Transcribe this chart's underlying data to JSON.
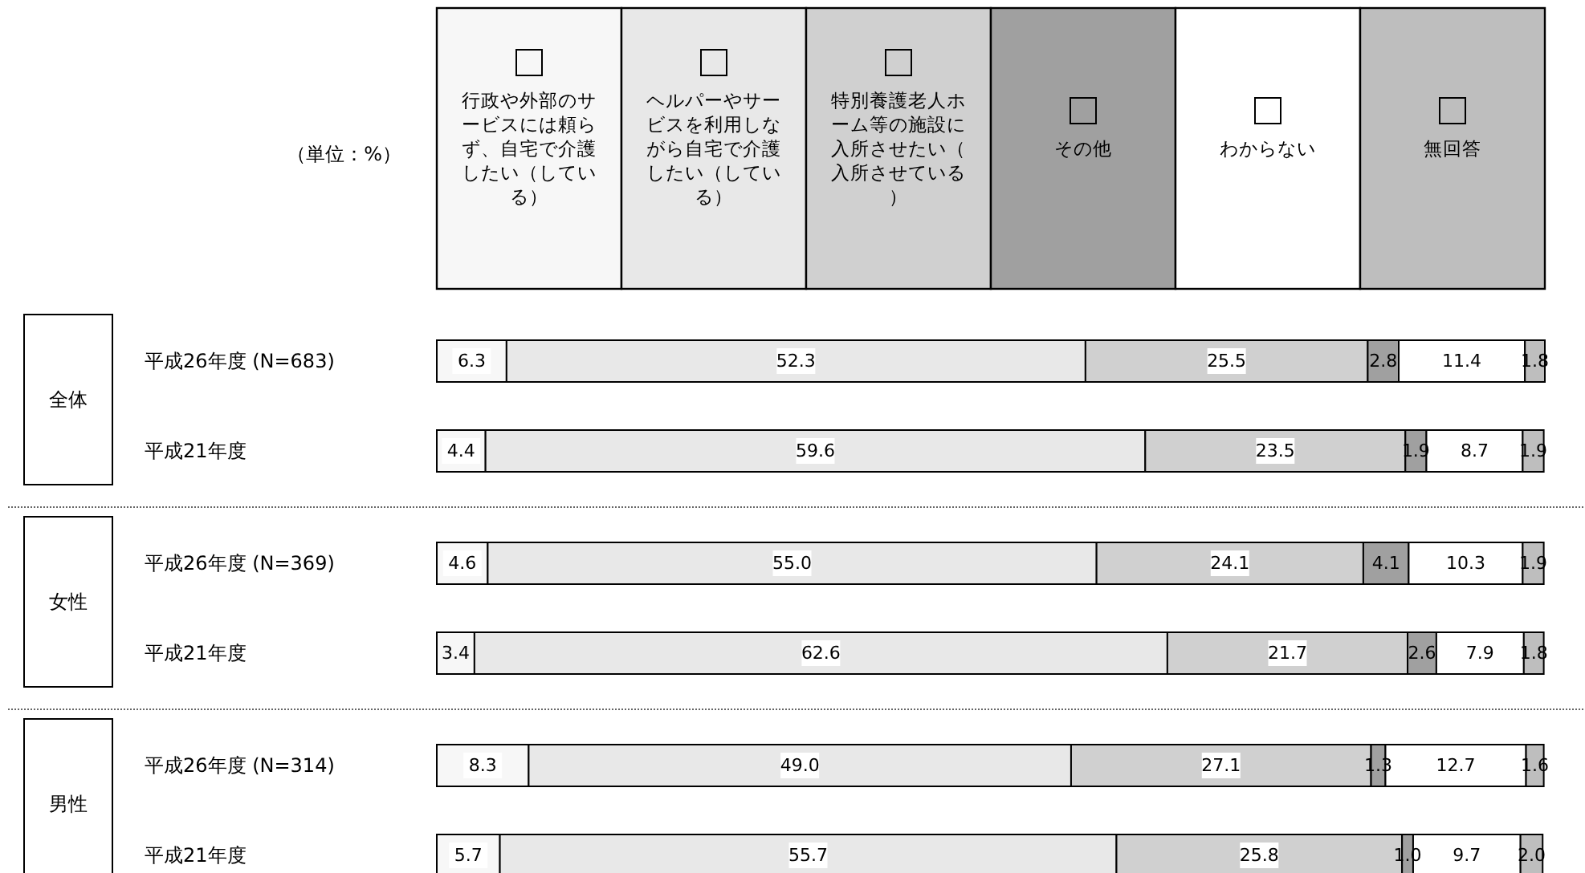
{
  "chart_data": {
    "type": "bar",
    "orientation": "horizontal",
    "stacked": true,
    "legend": "top",
    "annotations": [
      "（単位：%）",
      "全体",
      "女性",
      "男性"
    ],
    "categories": [
      "平成26年度 (N=683)",
      "平成21年度",
      "平成26年度 (N=369)",
      "平成21年度",
      "平成26年度 (N=314)",
      "平成21年度"
    ],
    "series": [
      {
        "name": "行政や外部のサービスには頼らず、自宅で介護したい（している）",
        "color": "#f7f7f7",
        "values": [
          6.3,
          4.4,
          4.6,
          3.4,
          8.3,
          5.7
        ],
        "value_labels": [
          "6.3",
          "4.4",
          "4.6",
          "3.4",
          "8.3",
          "5.7"
        ]
      },
      {
        "name": "ヘルパーやサービスを利用しながら自宅で介護したい（している）",
        "color": "#e8e8e8",
        "values": [
          52.3,
          59.6,
          55.0,
          62.6,
          49.0,
          55.7
        ],
        "value_labels": [
          "52.3",
          "59.6",
          "55.0",
          "62.6",
          "49.0",
          "55.7"
        ]
      },
      {
        "name": "特別養護老人ホーム等の施設に入所させたい（入所させている）",
        "color": "#d0d0d0",
        "values": [
          25.5,
          23.5,
          24.1,
          21.7,
          27.1,
          25.8
        ],
        "value_labels": [
          "25.5",
          "23.5",
          "24.1",
          "21.7",
          "27.1",
          "25.8"
        ]
      },
      {
        "name": "その他",
        "color": "#a0a0a0",
        "values": [
          2.8,
          1.9,
          4.1,
          2.6,
          1.3,
          1.0
        ],
        "value_labels": [
          "2.8",
          "1.9",
          "4.1",
          "2.6",
          "1.3",
          "1.0"
        ]
      },
      {
        "name": "わからない",
        "color": "#ffffff",
        "values": [
          11.4,
          8.7,
          10.3,
          7.9,
          12.7,
          9.7
        ],
        "value_labels": [
          "11.4",
          "8.7",
          "10.3",
          "7.9",
          "12.7",
          "9.7"
        ]
      },
      {
        "name": "無回答",
        "color": "#bebebe",
        "values": [
          1.8,
          1.9,
          1.9,
          1.8,
          1.6,
          2.0
        ],
        "value_labels": [
          "1.8",
          "1.9",
          "1.9",
          "1.8",
          "1.6",
          "2.0"
        ]
      }
    ]
  }
}
